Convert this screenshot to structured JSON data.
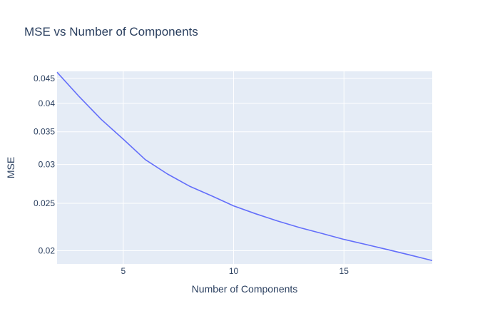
{
  "chart_data": {
    "type": "line",
    "title": "MSE vs Number of Components",
    "xlabel": "Number of Components",
    "ylabel": "MSE",
    "y_scale": "log",
    "xlim": [
      2,
      19
    ],
    "ylim": [
      0.0188,
      0.0465
    ],
    "x_ticks": [
      5,
      10,
      15
    ],
    "y_ticks": [
      0.02,
      0.025,
      0.03,
      0.035,
      0.04,
      0.045
    ],
    "y_tick_labels": [
      "0.02",
      "0.025",
      "0.03",
      "0.035",
      "0.04",
      "0.045"
    ],
    "grid": true,
    "background_color": "#e5ecf6",
    "grid_color": "#ffffff",
    "line_color": "#636efa",
    "series": [
      {
        "x": [
          2,
          3,
          4,
          5,
          6,
          7,
          8,
          9,
          10,
          11,
          12,
          13,
          14,
          15,
          16,
          17,
          18,
          19
        ],
        "values": [
          0.0463,
          0.0413,
          0.0371,
          0.0338,
          0.0307,
          0.0287,
          0.0271,
          0.0259,
          0.0247,
          0.0238,
          0.023,
          0.0223,
          0.0217,
          0.0211,
          0.0206,
          0.0201,
          0.0196,
          0.0191
        ]
      }
    ]
  }
}
